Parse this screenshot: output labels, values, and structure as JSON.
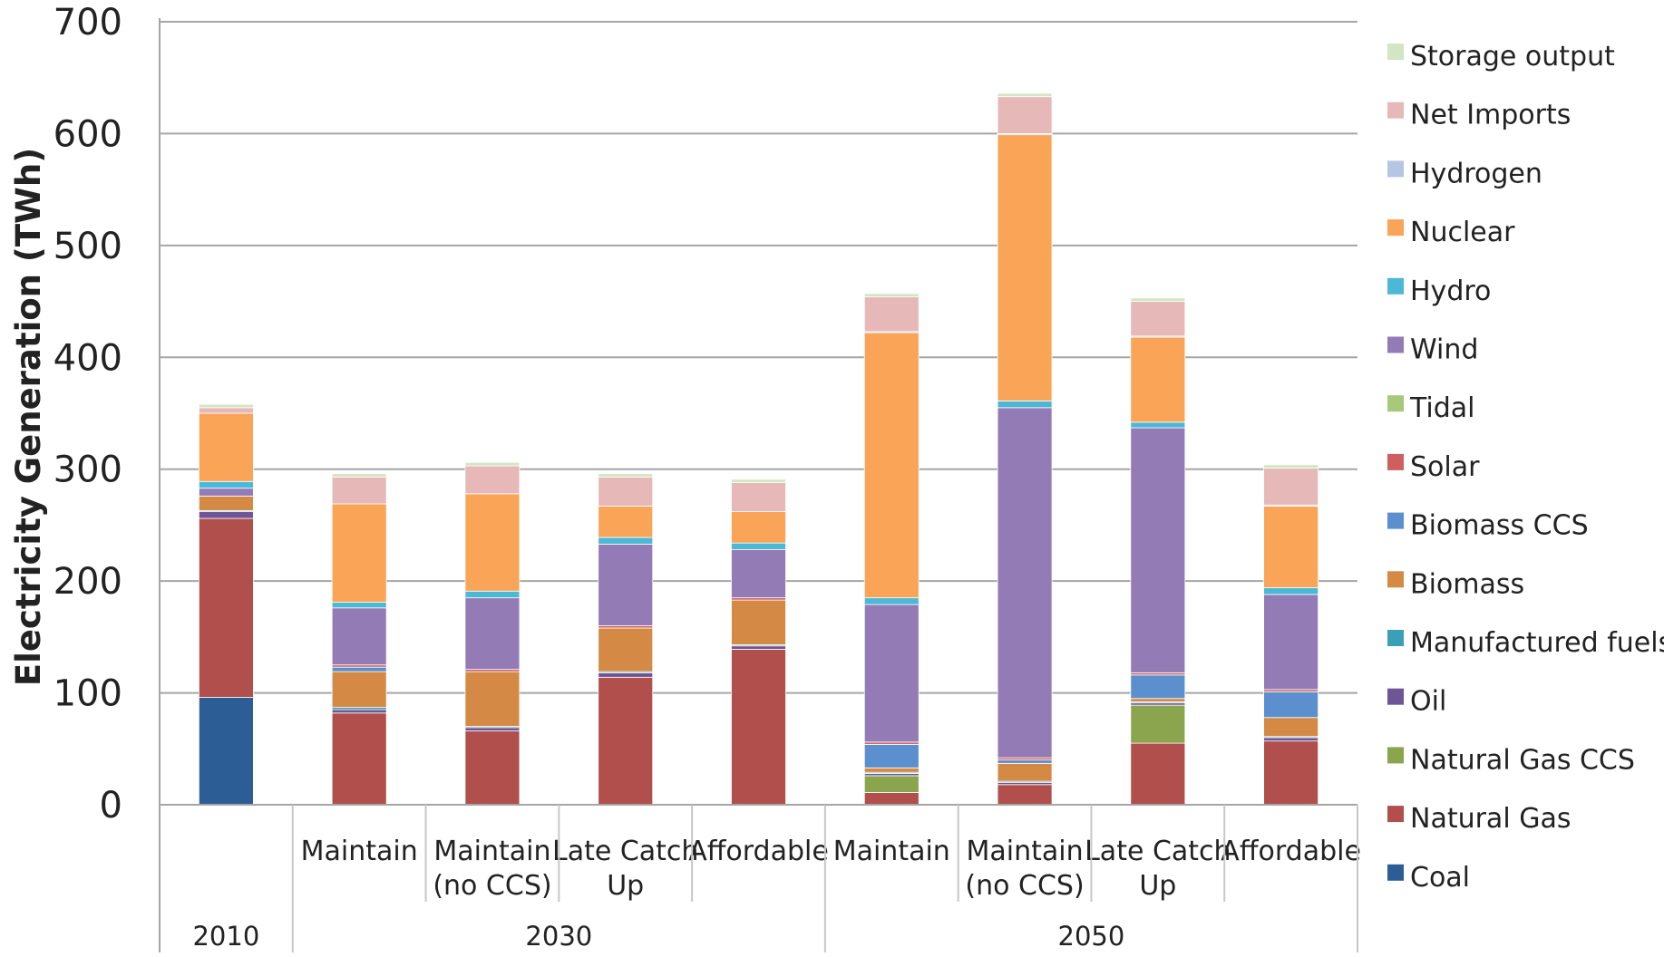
{
  "chart_data": {
    "type": "bar",
    "stacked": true,
    "title": "",
    "ylabel": "Electricity Generation (TWh)",
    "ylim": [
      0,
      700
    ],
    "yticks": [
      0,
      100,
      200,
      300,
      400,
      500,
      600,
      700
    ],
    "grid": true,
    "legend_position": "right",
    "categories": [
      "",
      "Maintain",
      "Maintain\n(no CCS)",
      "Late Catch\nUp",
      "Affordable",
      "Maintain",
      "Maintain\n(no CCS)",
      "Late Catch\nUp",
      "Affordable"
    ],
    "groups": [
      {
        "label": "2010",
        "span": 1
      },
      {
        "label": "2030",
        "span": 4
      },
      {
        "label": "2050",
        "span": 4
      }
    ],
    "series": [
      {
        "name": "Coal",
        "color": "#2c5d94",
        "values": [
          96,
          0,
          0,
          0,
          0,
          0,
          0,
          0,
          0
        ]
      },
      {
        "name": "Natural Gas",
        "color": "#b04f4b",
        "values": [
          160,
          82,
          66,
          114,
          139,
          11,
          18,
          55,
          57
        ]
      },
      {
        "name": "Natural Gas CCS",
        "color": "#8aa54e",
        "values": [
          0,
          0,
          0,
          0,
          0,
          15,
          0,
          34,
          0
        ]
      },
      {
        "name": "Oil",
        "color": "#6e5596",
        "values": [
          6,
          3,
          3,
          4,
          3,
          2,
          2,
          2,
          3
        ]
      },
      {
        "name": "Manufactured fuels",
        "color": "#3aa0b8",
        "values": [
          1,
          2,
          1,
          1,
          1,
          1,
          1,
          1,
          1
        ]
      },
      {
        "name": "Biomass",
        "color": "#d48a45",
        "values": [
          13,
          32,
          49,
          39,
          40,
          4,
          16,
          3,
          17
        ]
      },
      {
        "name": "Biomass CCS",
        "color": "#5b8fce",
        "values": [
          0,
          4,
          0,
          0,
          0,
          21,
          3,
          21,
          23
        ]
      },
      {
        "name": "Solar",
        "color": "#cf5f5f",
        "values": [
          0,
          2,
          2,
          2,
          2,
          2,
          2,
          2,
          2
        ]
      },
      {
        "name": "Tidal",
        "color": "#a9c97a",
        "values": [
          0,
          0,
          0,
          0,
          0,
          0,
          0,
          0,
          0
        ]
      },
      {
        "name": "Wind",
        "color": "#937bb5",
        "values": [
          7,
          51,
          64,
          73,
          43,
          123,
          313,
          219,
          85
        ]
      },
      {
        "name": "Hydro",
        "color": "#4bb9d6",
        "values": [
          6,
          5,
          6,
          6,
          6,
          6,
          6,
          5,
          6
        ]
      },
      {
        "name": "Nuclear",
        "color": "#f9a457",
        "values": [
          61,
          88,
          87,
          28,
          28,
          237,
          238,
          76,
          73
        ]
      },
      {
        "name": "Hydrogen",
        "color": "#b5c6e3",
        "values": [
          0,
          0,
          0,
          0,
          0,
          1,
          1,
          1,
          1
        ]
      },
      {
        "name": "Net Imports",
        "color": "#e6b9b8",
        "values": [
          5,
          24,
          25,
          26,
          26,
          31,
          33,
          31,
          33
        ]
      },
      {
        "name": "Storage output",
        "color": "#d2e6c3",
        "values": [
          3,
          3,
          3,
          3,
          3,
          3,
          3,
          3,
          3
        ]
      }
    ]
  }
}
